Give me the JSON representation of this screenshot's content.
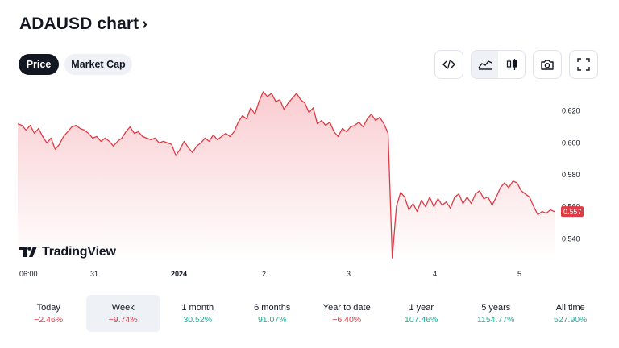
{
  "header": {
    "title": "ADAUSD chart",
    "chevron": "›"
  },
  "tabs": [
    {
      "label": "Price",
      "active": true
    },
    {
      "label": "Market Cap",
      "active": false
    }
  ],
  "toolbar": {
    "icons": [
      "code-embed-icon",
      "area-chart-icon",
      "candlestick-icon",
      "camera-icon",
      "fullscreen-icon"
    ]
  },
  "watermark": "TradingView",
  "chart_data": {
    "type": "area",
    "symbol": "ADAUSD",
    "x_ticks": [
      "06:00",
      "31",
      "2024",
      "2",
      "3",
      "4",
      "5"
    ],
    "y_ticks": [
      "0.620",
      "0.600",
      "0.580",
      "0.540"
    ],
    "y_tick_partial": "0.560",
    "ylim": [
      0.525,
      0.635
    ],
    "last_price": "0.557",
    "colors": {
      "line": "#e03a45",
      "fill_top": "#f9c9cd",
      "fill_bottom": "#ffffff",
      "last_label_bg": "#e03a45"
    },
    "series": [
      {
        "values": [
          0.612,
          0.611,
          0.608,
          0.611,
          0.606,
          0.609,
          0.604,
          0.6,
          0.603,
          0.596,
          0.599,
          0.604,
          0.607,
          0.61,
          0.611,
          0.609,
          0.608,
          0.606,
          0.603,
          0.604,
          0.601,
          0.603,
          0.601,
          0.598,
          0.601,
          0.603,
          0.607,
          0.61,
          0.606,
          0.607,
          0.604,
          0.603,
          0.602,
          0.603,
          0.6,
          0.601,
          0.6,
          0.599,
          0.592,
          0.596,
          0.601,
          0.597,
          0.594,
          0.598,
          0.6,
          0.603,
          0.601,
          0.605,
          0.602,
          0.604,
          0.606,
          0.604,
          0.607,
          0.613,
          0.617,
          0.615,
          0.622,
          0.618,
          0.626,
          0.632,
          0.629,
          0.631,
          0.626,
          0.627,
          0.621,
          0.625,
          0.628,
          0.631,
          0.627,
          0.625,
          0.619,
          0.622,
          0.612,
          0.614,
          0.611,
          0.613,
          0.607,
          0.604,
          0.609,
          0.607,
          0.61,
          0.611,
          0.613,
          0.61,
          0.615,
          0.618,
          0.614,
          0.616,
          0.612,
          0.606,
          0.528,
          0.56,
          0.569,
          0.566,
          0.558,
          0.562,
          0.557,
          0.564,
          0.56,
          0.566,
          0.56,
          0.565,
          0.561,
          0.563,
          0.559,
          0.566,
          0.568,
          0.562,
          0.566,
          0.562,
          0.568,
          0.57,
          0.565,
          0.566,
          0.561,
          0.566,
          0.572,
          0.575,
          0.572,
          0.576,
          0.575,
          0.57,
          0.568,
          0.566,
          0.56,
          0.555,
          0.557,
          0.556,
          0.558,
          0.557
        ]
      }
    ]
  },
  "periods": [
    {
      "label": "Today",
      "value": "−2.46%",
      "sign": "neg",
      "active": false
    },
    {
      "label": "Week",
      "value": "−9.74%",
      "sign": "neg",
      "active": true
    },
    {
      "label": "1 month",
      "value": "30.52%",
      "sign": "pos",
      "active": false
    },
    {
      "label": "6 months",
      "value": "91.07%",
      "sign": "pos",
      "active": false
    },
    {
      "label": "Year to date",
      "value": "−6.40%",
      "sign": "neg",
      "active": false
    },
    {
      "label": "1 year",
      "value": "107.46%",
      "sign": "pos",
      "active": false
    },
    {
      "label": "5 years",
      "value": "1154.77%",
      "sign": "pos",
      "active": false
    },
    {
      "label": "All time",
      "value": "527.90%",
      "sign": "pos",
      "active": false
    }
  ]
}
